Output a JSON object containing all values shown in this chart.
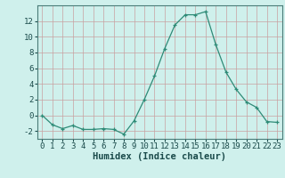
{
  "x": [
    0,
    1,
    2,
    3,
    4,
    5,
    6,
    7,
    8,
    9,
    10,
    11,
    12,
    13,
    14,
    15,
    16,
    17,
    18,
    19,
    20,
    21,
    22,
    23
  ],
  "y": [
    0.0,
    -1.2,
    -1.7,
    -1.3,
    -1.8,
    -1.8,
    -1.7,
    -1.8,
    -2.4,
    -0.7,
    2.0,
    5.0,
    8.5,
    11.5,
    12.8,
    12.8,
    13.2,
    9.0,
    5.5,
    3.3,
    1.7,
    1.0,
    -0.8,
    -0.9
  ],
  "line_color": "#2e8b77",
  "marker": "+",
  "background_color": "#cff0ec",
  "grid_color_major": "#aacfcb",
  "grid_color_minor": "#d4e8e5",
  "axis_color": "#4a7c78",
  "xlabel": "Humidex (Indice chaleur)",
  "ylim": [
    -3,
    14
  ],
  "xlim": [
    -0.5,
    23.5
  ],
  "yticks": [
    -2,
    0,
    2,
    4,
    6,
    8,
    10,
    12
  ],
  "xticks": [
    0,
    1,
    2,
    3,
    4,
    5,
    6,
    7,
    8,
    9,
    10,
    11,
    12,
    13,
    14,
    15,
    16,
    17,
    18,
    19,
    20,
    21,
    22,
    23
  ],
  "font_color": "#1a4a4a",
  "tick_fontsize": 6.5,
  "xlabel_fontsize": 7.5
}
